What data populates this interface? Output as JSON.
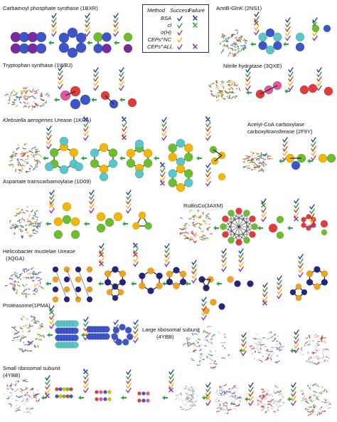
{
  "legend": {
    "headers": {
      "method": "Method",
      "success": "Success",
      "failure": "Failure"
    },
    "methods": [
      {
        "name": "BSA",
        "color": "#1f2fb0"
      },
      {
        "name": "cl",
        "color": "#2a9a2a"
      },
      {
        "name": "σ(H)",
        "color": "#d42a2a"
      },
      {
        "name": "CEPs^NC",
        "color": "#e8b400"
      },
      {
        "name": "CEPs^ALL",
        "color": "#8a2aa8"
      }
    ]
  },
  "complexes": [
    {
      "id": "carbamoyl",
      "name": "Carbamoyl phosphate synthase (1BXR)"
    },
    {
      "id": "tryptophan",
      "name": "Tryptophan synthase (1WBJ)"
    },
    {
      "id": "amtb",
      "name": "AmtB-GlnK (2NS1)"
    },
    {
      "id": "nitrile",
      "name": "Nitrile hydratase (3QXE)"
    },
    {
      "id": "urease-kra",
      "name_italic": "Klebsiella aerogenes",
      "name_rest": " Urease (1KRA)"
    },
    {
      "id": "acetyl-line1",
      "name": "Acetyl-CoA carboxylase"
    },
    {
      "id": "acetyl-line2",
      "name": "carboxyltransferase (2F9Y)"
    },
    {
      "id": "aspartate",
      "name": "Aspartate transcarbamoylase (1D09)"
    },
    {
      "id": "rubisco",
      "name": "RuBisCo(3AXM)"
    },
    {
      "id": "helico-line1",
      "name": "Helicobacter mustelae Urease"
    },
    {
      "id": "helico-line2",
      "name": "(3QGA)"
    },
    {
      "id": "proteasome",
      "name": "Proteasome(1PMA)"
    },
    {
      "id": "large-line1",
      "name": "Large ribosomal subunit"
    },
    {
      "id": "large-line2",
      "name": "(4YBB)"
    },
    {
      "id": "small-line1",
      "name": "Small ribosomal subunit"
    },
    {
      "id": "small-line2",
      "name": "(4YBB)"
    }
  ],
  "colors": {
    "blue": "#3d55c8",
    "green": "#6dbe2c",
    "yellow": "#f2b705",
    "purple": "#7a2c9e",
    "red": "#e23b3b",
    "pink": "#e05a9a",
    "teal": "#5ac6c9",
    "navy": "#23267a",
    "orange": "#f0a21c",
    "arrow": "#2fa84a"
  }
}
